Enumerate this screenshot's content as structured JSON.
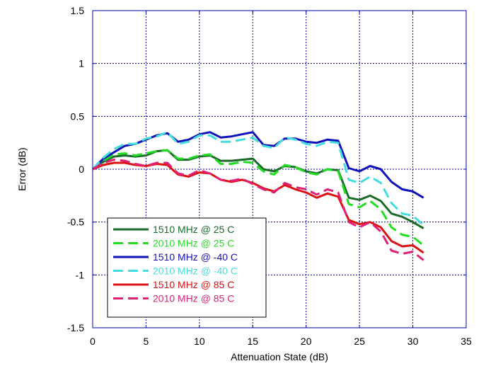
{
  "chart_data": {
    "type": "line",
    "title": "",
    "xlabel": "Attenuation State (dB)",
    "ylabel": "Error (dB)",
    "xlim": [
      0,
      35
    ],
    "ylim": [
      -1.5,
      1.5
    ],
    "xticks": [
      "0",
      "5",
      "10",
      "15",
      "20",
      "25",
      "30",
      "35"
    ],
    "yticks": [
      "1.5",
      "1",
      "0.5",
      "0",
      "-0.5",
      "-1",
      "-1.5"
    ],
    "grid": true,
    "legend_position": "bottom-left",
    "x": [
      0,
      1,
      2,
      3,
      4,
      5,
      6,
      7,
      8,
      9,
      10,
      11,
      12,
      13,
      14,
      15,
      16,
      17,
      18,
      19,
      20,
      21,
      22,
      23,
      24,
      25,
      26,
      27,
      28,
      29,
      30,
      31
    ],
    "series": [
      {
        "name": "1510 MHz @ 25 C",
        "color": "#1a6b2a",
        "dash": "solid",
        "values": [
          0,
          0.07,
          0.12,
          0.13,
          0.12,
          0.13,
          0.17,
          0.18,
          0.09,
          0.09,
          0.12,
          0.13,
          0.08,
          0.08,
          0.09,
          0.1,
          0.0,
          -0.02,
          0.03,
          0.02,
          -0.02,
          -0.04,
          0.0,
          -0.01,
          -0.27,
          -0.29,
          -0.25,
          -0.3,
          -0.42,
          -0.45,
          -0.5,
          -0.56
        ]
      },
      {
        "name": "2010 MHz @ 25 C",
        "color": "#22dd22",
        "dash": "dash",
        "values": [
          0,
          0.08,
          0.14,
          0.15,
          0.13,
          0.15,
          0.17,
          0.18,
          0.1,
          0.1,
          0.13,
          0.14,
          0.05,
          0.05,
          0.07,
          0.06,
          -0.02,
          -0.05,
          0.04,
          0.02,
          -0.03,
          -0.05,
          0.0,
          -0.02,
          -0.33,
          -0.36,
          -0.3,
          -0.38,
          -0.55,
          -0.62,
          -0.64,
          -0.72
        ]
      },
      {
        "name": "1510 MHz @ -40 C",
        "color": "#1111bb",
        "dash": "solid",
        "values": [
          0,
          0.1,
          0.16,
          0.22,
          0.24,
          0.28,
          0.32,
          0.34,
          0.26,
          0.28,
          0.33,
          0.35,
          0.3,
          0.31,
          0.33,
          0.35,
          0.23,
          0.22,
          0.29,
          0.29,
          0.26,
          0.25,
          0.28,
          0.27,
          0.01,
          -0.02,
          0.03,
          0.0,
          -0.12,
          -0.19,
          -0.21,
          -0.27
        ]
      },
      {
        "name": "2010 MHz @ -40 C",
        "color": "#44dddd",
        "dash": "dash",
        "values": [
          0,
          0.11,
          0.19,
          0.24,
          0.24,
          0.29,
          0.31,
          0.35,
          0.24,
          0.26,
          0.32,
          0.32,
          0.26,
          0.26,
          0.28,
          0.3,
          0.22,
          0.2,
          0.3,
          0.28,
          0.24,
          0.22,
          0.26,
          0.25,
          -0.1,
          -0.13,
          -0.07,
          -0.13,
          -0.32,
          -0.42,
          -0.44,
          -0.53
        ]
      },
      {
        "name": "1510 MHz @ 85 C",
        "color": "#dd1111",
        "dash": "solid",
        "values": [
          0,
          0.04,
          0.06,
          0.06,
          0.04,
          0.03,
          0.05,
          0.04,
          -0.05,
          -0.07,
          -0.03,
          -0.04,
          -0.1,
          -0.12,
          -0.1,
          -0.13,
          -0.18,
          -0.21,
          -0.15,
          -0.19,
          -0.22,
          -0.27,
          -0.23,
          -0.26,
          -0.48,
          -0.52,
          -0.5,
          -0.55,
          -0.68,
          -0.73,
          -0.72,
          -0.79
        ]
      },
      {
        "name": "2010 MHz @ 85 C",
        "color": "#dd2277",
        "dash": "dash",
        "values": [
          0,
          0.06,
          0.09,
          0.08,
          0.05,
          0.03,
          0.06,
          0.06,
          -0.04,
          -0.06,
          -0.01,
          -0.04,
          -0.1,
          -0.11,
          -0.09,
          -0.14,
          -0.19,
          -0.22,
          -0.13,
          -0.17,
          -0.19,
          -0.24,
          -0.19,
          -0.22,
          -0.5,
          -0.55,
          -0.5,
          -0.59,
          -0.77,
          -0.8,
          -0.78,
          -0.86
        ]
      }
    ]
  }
}
